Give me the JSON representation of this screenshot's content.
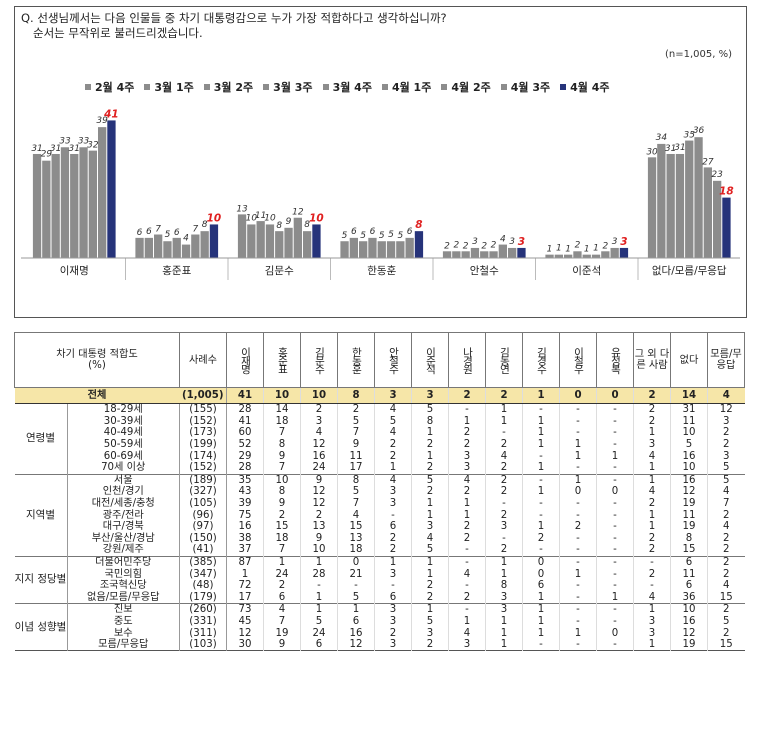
{
  "question": {
    "line1": "Q. 선생님께서는 다음 인물들 중 차기 대통령감으로 누가 가장 적합하다고 생각하십니까?",
    "line2": "순서는 무작위로 불러드리겠습니다.",
    "note": "(n=1,005,  %)"
  },
  "colors": {
    "past": "#8c8c8c",
    "latest": "#26337a",
    "latest_label": "#e02020",
    "total_row": "#f6e6a8"
  },
  "chart_data": {
    "type": "bar",
    "title": "",
    "xlabel": "",
    "ylabel": "",
    "ylim": [
      0,
      45
    ],
    "legend_position": "top",
    "grid": false,
    "categories": [
      "이재명",
      "홍준표",
      "김문수",
      "한동훈",
      "안철수",
      "이준석",
      "없다/모름/무응답"
    ],
    "series": [
      {
        "name": "2월 4주",
        "values": [
          31,
          6,
          13,
          5,
          2,
          1,
          30
        ]
      },
      {
        "name": "3월 1주",
        "values": [
          29,
          6,
          10,
          6,
          2,
          1,
          34
        ]
      },
      {
        "name": "3월 2주",
        "values": [
          31,
          7,
          11,
          5,
          2,
          1,
          31
        ]
      },
      {
        "name": "3월 3주",
        "values": [
          33,
          5,
          10,
          6,
          3,
          2,
          31
        ]
      },
      {
        "name": "3월 4주",
        "values": [
          31,
          6,
          8,
          5,
          2,
          1,
          35
        ]
      },
      {
        "name": "4월 1주",
        "values": [
          33,
          4,
          9,
          5,
          2,
          1,
          36
        ]
      },
      {
        "name": "4월 2주",
        "values": [
          32,
          7,
          12,
          5,
          4,
          2,
          27
        ]
      },
      {
        "name": "4월 3주",
        "values": [
          39,
          8,
          8,
          6,
          3,
          3,
          23
        ]
      },
      {
        "name": "4월 4주",
        "values": [
          41,
          10,
          10,
          8,
          3,
          3,
          18
        ]
      }
    ]
  },
  "table": {
    "headers": {
      "label": "차기 대통령 적합도",
      "label_unit": "(%)",
      "n": "사례수",
      "cols": [
        "이재명",
        "홍준표",
        "김문수",
        "한동훈",
        "안철수",
        "이준석",
        "나경원",
        "김동연",
        "김경수",
        "이철우",
        "유정복",
        "그 외 다른 사람",
        "없다",
        "모름/무응답"
      ]
    },
    "total": {
      "label": "전체",
      "n": "(1,005)",
      "values": [
        "41",
        "10",
        "10",
        "8",
        "3",
        "3",
        "2",
        "2",
        "1",
        "0",
        "0",
        "2",
        "14",
        "4"
      ]
    },
    "groups": [
      {
        "name": "연령별",
        "rows": [
          {
            "label": "18-29세",
            "n": "(155)",
            "values": [
              "28",
              "14",
              "2",
              "2",
              "4",
              "5",
              "-",
              "1",
              "-",
              "-",
              "-",
              "2",
              "31",
              "12"
            ]
          },
          {
            "label": "30-39세",
            "n": "(152)",
            "values": [
              "41",
              "18",
              "3",
              "5",
              "5",
              "8",
              "1",
              "1",
              "1",
              "-",
              "-",
              "2",
              "11",
              "3"
            ]
          },
          {
            "label": "40-49세",
            "n": "(173)",
            "values": [
              "60",
              "7",
              "4",
              "7",
              "4",
              "1",
              "2",
              "-",
              "1",
              "-",
              "-",
              "1",
              "10",
              "2"
            ]
          },
          {
            "label": "50-59세",
            "n": "(199)",
            "values": [
              "52",
              "8",
              "12",
              "9",
              "2",
              "2",
              "2",
              "2",
              "1",
              "1",
              "-",
              "3",
              "5",
              "2"
            ]
          },
          {
            "label": "60-69세",
            "n": "(174)",
            "values": [
              "29",
              "9",
              "16",
              "11",
              "2",
              "1",
              "3",
              "4",
              "-",
              "1",
              "1",
              "4",
              "16",
              "3"
            ]
          },
          {
            "label": "70세 이상",
            "n": "(152)",
            "values": [
              "28",
              "7",
              "24",
              "17",
              "1",
              "2",
              "3",
              "2",
              "1",
              "-",
              "-",
              "1",
              "10",
              "5"
            ]
          }
        ]
      },
      {
        "name": "지역별",
        "rows": [
          {
            "label": "서울",
            "n": "(189)",
            "values": [
              "35",
              "10",
              "9",
              "8",
              "4",
              "5",
              "4",
              "2",
              "-",
              "1",
              "-",
              "1",
              "16",
              "5"
            ]
          },
          {
            "label": "인천/경기",
            "n": "(327)",
            "values": [
              "43",
              "8",
              "12",
              "5",
              "3",
              "2",
              "2",
              "2",
              "1",
              "0",
              "0",
              "4",
              "12",
              "4"
            ]
          },
          {
            "label": "대전/세종/충청",
            "n": "(105)",
            "values": [
              "39",
              "9",
              "12",
              "7",
              "3",
              "1",
              "1",
              "-",
              "-",
              "-",
              "-",
              "2",
              "19",
              "7"
            ]
          },
          {
            "label": "광주/전라",
            "n": "(96)",
            "values": [
              "75",
              "2",
              "2",
              "4",
              "-",
              "1",
              "1",
              "2",
              "-",
              "-",
              "-",
              "1",
              "11",
              "2"
            ]
          },
          {
            "label": "대구/경북",
            "n": "(97)",
            "values": [
              "16",
              "15",
              "13",
              "15",
              "6",
              "3",
              "2",
              "3",
              "1",
              "2",
              "-",
              "1",
              "19",
              "4"
            ]
          },
          {
            "label": "부산/울산/경남",
            "n": "(150)",
            "values": [
              "38",
              "18",
              "9",
              "13",
              "2",
              "4",
              "2",
              "-",
              "2",
              "-",
              "-",
              "2",
              "8",
              "2"
            ]
          },
          {
            "label": "강원/제주",
            "n": "(41)",
            "values": [
              "37",
              "7",
              "10",
              "18",
              "2",
              "5",
              "-",
              "2",
              "-",
              "-",
              "-",
              "2",
              "15",
              "2"
            ]
          }
        ]
      },
      {
        "name": "지지 정당별",
        "rows": [
          {
            "label": "더불어민주당",
            "n": "(385)",
            "values": [
              "87",
              "1",
              "1",
              "0",
              "1",
              "1",
              "-",
              "1",
              "0",
              "-",
              "-",
              "-",
              "6",
              "2"
            ]
          },
          {
            "label": "국민의힘",
            "n": "(347)",
            "values": [
              "1",
              "24",
              "28",
              "21",
              "3",
              "1",
              "4",
              "1",
              "0",
              "1",
              "-",
              "2",
              "11",
              "2"
            ]
          },
          {
            "label": "조국혁신당",
            "n": "(48)",
            "values": [
              "72",
              "2",
              "-",
              "-",
              "-",
              "2",
              "-",
              "8",
              "6",
              "-",
              "-",
              "-",
              "6",
              "4"
            ]
          },
          {
            "label": "없음/모름/무응답",
            "n": "(179)",
            "values": [
              "17",
              "6",
              "1",
              "5",
              "6",
              "2",
              "2",
              "3",
              "1",
              "-",
              "1",
              "4",
              "36",
              "15"
            ]
          }
        ]
      },
      {
        "name": "이념 성향별",
        "rows": [
          {
            "label": "진보",
            "n": "(260)",
            "values": [
              "73",
              "4",
              "1",
              "1",
              "3",
              "1",
              "-",
              "3",
              "1",
              "-",
              "-",
              "1",
              "10",
              "2"
            ]
          },
          {
            "label": "중도",
            "n": "(331)",
            "values": [
              "45",
              "7",
              "5",
              "6",
              "3",
              "5",
              "1",
              "1",
              "1",
              "-",
              "-",
              "3",
              "16",
              "5"
            ]
          },
          {
            "label": "보수",
            "n": "(311)",
            "values": [
              "12",
              "19",
              "24",
              "16",
              "2",
              "3",
              "4",
              "1",
              "1",
              "1",
              "0",
              "3",
              "12",
              "2"
            ]
          },
          {
            "label": "모름/무응답",
            "n": "(103)",
            "values": [
              "30",
              "9",
              "6",
              "12",
              "3",
              "2",
              "3",
              "1",
              "-",
              "-",
              "-",
              "1",
              "19",
              "15"
            ]
          }
        ]
      }
    ]
  }
}
